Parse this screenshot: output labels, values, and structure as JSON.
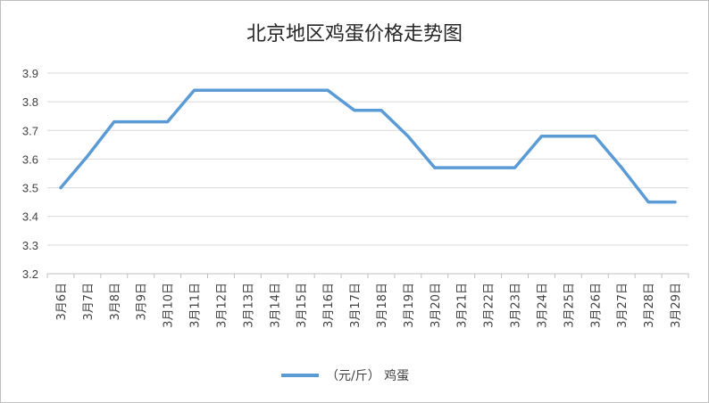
{
  "chart_data": {
    "type": "line",
    "title": "北京地区鸡蛋价格走势图",
    "xlabel": "",
    "ylabel": "",
    "ylim": [
      3.2,
      3.9
    ],
    "yticks": [
      "3.2",
      "3.3",
      "3.4",
      "3.5",
      "3.6",
      "3.7",
      "3.8",
      "3.9"
    ],
    "grid": true,
    "legend_position": "bottom",
    "categories": [
      "3月6日",
      "3月7日",
      "3月8日",
      "3月9日",
      "3月10日",
      "3月11日",
      "3月12日",
      "3月13日",
      "3月14日",
      "3月15日",
      "3月16日",
      "3月17日",
      "3月18日",
      "3月19日",
      "3月20日",
      "3月21日",
      "3月22日",
      "3月23日",
      "3月24日",
      "3月25日",
      "3月26日",
      "3月27日",
      "3月28日",
      "3月29日"
    ],
    "series": [
      {
        "name": "（元/斤） 鸡蛋",
        "color": "#5b9bd5",
        "values": [
          3.5,
          3.61,
          3.73,
          3.73,
          3.73,
          3.84,
          3.84,
          3.84,
          3.84,
          3.84,
          3.84,
          3.77,
          3.77,
          3.68,
          3.57,
          3.57,
          3.57,
          3.57,
          3.68,
          3.68,
          3.68,
          3.57,
          3.45,
          3.45
        ]
      }
    ]
  },
  "colors": {
    "grid": "#d9d9d9",
    "axis": "#bfbfbf"
  }
}
